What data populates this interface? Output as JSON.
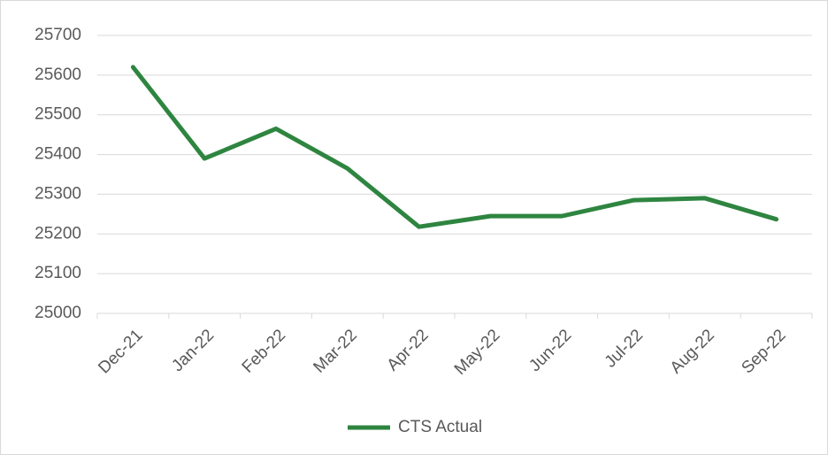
{
  "chart_data": {
    "type": "line",
    "categories": [
      "Dec-21",
      "Jan-22",
      "Feb-22",
      "Mar-22",
      "Apr-22",
      "May-22",
      "Jun-22",
      "Jul-22",
      "Aug-22",
      "Sep-22"
    ],
    "series": [
      {
        "name": "CTS Actual",
        "color": "#2e8540",
        "values": [
          25620,
          25390,
          25465,
          25365,
          25218,
          25245,
          25245,
          25285,
          25290,
          25237
        ]
      }
    ],
    "ylim": [
      25000,
      25700
    ],
    "yticks": [
      25000,
      25100,
      25200,
      25300,
      25400,
      25500,
      25600,
      25700
    ],
    "grid": true,
    "legend": "bottom"
  }
}
